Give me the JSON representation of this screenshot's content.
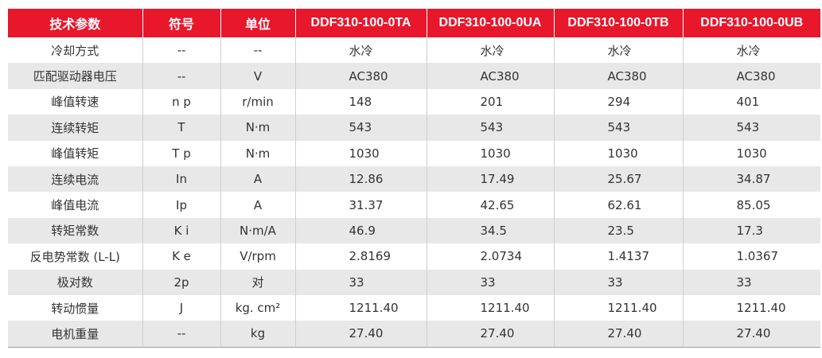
{
  "header": {
    "param": "技术参数",
    "symbol": "符号",
    "unit": "单位",
    "models": [
      "DDF310-100-0TA",
      "DDF310-100-0UA",
      "DDF310-100-0TB",
      "DDF310-100-0UB"
    ]
  },
  "rows": [
    {
      "name": "冷却方式",
      "symbol": "--",
      "unit": "--",
      "values": [
        "水冷",
        "水冷",
        "水冷",
        "水冷"
      ]
    },
    {
      "name": "匹配驱动器电压",
      "symbol": "--",
      "unit": "V",
      "values": [
        "AC380",
        "AC380",
        "AC380",
        "AC380"
      ]
    },
    {
      "name": "峰值转速",
      "symbol": "n p",
      "unit": "r/min",
      "values": [
        "148",
        "201",
        "294",
        "401"
      ]
    },
    {
      "name": "连续转矩",
      "symbol": "T",
      "unit": "N·m",
      "values": [
        "543",
        "543",
        "543",
        "543"
      ]
    },
    {
      "name": "峰值转矩",
      "symbol": "T p",
      "unit": "N·m",
      "values": [
        "1030",
        "1030",
        "1030",
        "1030"
      ]
    },
    {
      "name": "连续电流",
      "symbol": "In",
      "unit": "A",
      "values": [
        "12.86",
        "17.49",
        "25.67",
        "34.87"
      ]
    },
    {
      "name": "峰值电流",
      "symbol": "Ip",
      "unit": "A",
      "values": [
        "31.37",
        "42.65",
        "62.61",
        "85.05"
      ]
    },
    {
      "name": "转矩常数",
      "symbol": "K i",
      "unit": "N·m/A",
      "values": [
        "46.9",
        "34.5",
        "23.5",
        "17.3"
      ]
    },
    {
      "name": "反电势常数 (L-L)",
      "symbol": "K e",
      "unit": "V/rpm",
      "values": [
        "2.8169",
        "2.0734",
        "1.4137",
        "1.0367"
      ]
    },
    {
      "name": "极对数",
      "symbol": "2p",
      "unit": "对",
      "values": [
        "33",
        "33",
        "33",
        "33"
      ]
    },
    {
      "name": "转动惯量",
      "symbol": "J",
      "unit": "kg. cm²",
      "values": [
        "1211.40",
        "1211.40",
        "1211.40",
        "1211.40"
      ]
    },
    {
      "name": "电机重量",
      "symbol": "--",
      "unit": "kg",
      "values": [
        "27.40",
        "27.40",
        "27.40",
        "27.40"
      ]
    }
  ],
  "colors": {
    "header_bg": "#e8172c",
    "stripe_bg": "#e8e8e8",
    "text": "#333333"
  }
}
